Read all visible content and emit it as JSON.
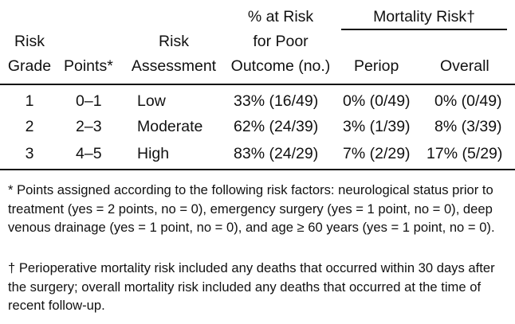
{
  "table": {
    "headers": {
      "risk_grade": [
        "Risk",
        "Grade"
      ],
      "points": "Points*",
      "risk_assessment": [
        "Risk",
        "Assessment"
      ],
      "pct_at_risk": [
        "% at Risk",
        "for Poor",
        "Outcome (no.)"
      ],
      "mortality_risk": "Mortality Risk†",
      "periop": "Periop",
      "overall": "Overall"
    },
    "rows": [
      {
        "grade": "1",
        "points": "0–1",
        "assessment": "Low",
        "pct": "33% (16/49)",
        "periop": "0% (0/49)",
        "overall": "0% (0/49)"
      },
      {
        "grade": "2",
        "points": "2–3",
        "assessment": "Moderate",
        "pct": "62% (24/39)",
        "periop": "3% (1/39)",
        "overall": "8% (3/39)"
      },
      {
        "grade": "3",
        "points": "4–5",
        "assessment": "High",
        "pct": "83% (24/29)",
        "periop": "7% (2/29)",
        "overall": "17% (5/29)"
      }
    ]
  },
  "footnotes": {
    "star": "* Points assigned according to the following risk factors: neurological status prior to treatment (yes = 2 points, no = 0), emergency surgery (yes = 1 point, no = 0), deep venous drainage (yes = 1 point, no = 0), and age ≥ 60 years (yes = 1 point, no = 0).",
    "dagger": "† Perioperative mortality risk included any deaths that occurred within 30 days after the surgery; overall mortality risk included any deaths that occurred at the time of recent follow-up."
  }
}
